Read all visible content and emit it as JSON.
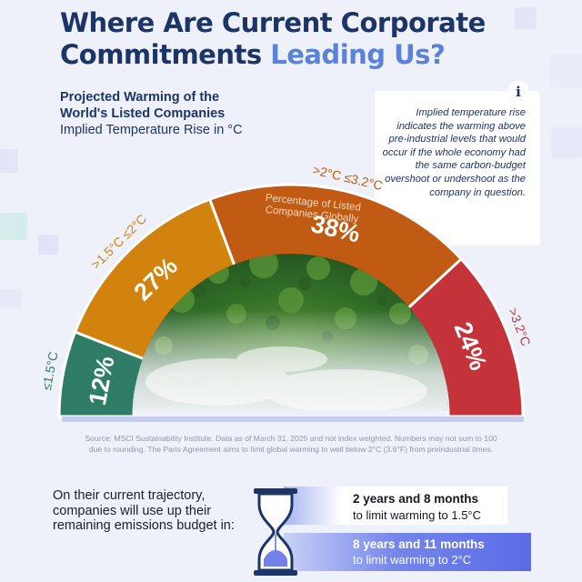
{
  "header": {
    "title_line1": "Where Are Current Corporate",
    "title_line2_plain": "Commitments",
    "title_line2_accent": "Leading Us?"
  },
  "subtitle": {
    "line1": "Projected Warming of the",
    "line2": "World's Listed Companies",
    "line3": "Implied Temperature Rise in °C"
  },
  "info": {
    "icon": "info-icon",
    "icon_glyph": "i",
    "text": "Implied temperature rise indicates the warming above pre-industrial levels that would occur if the whole economy had the same carbon-budget overshoot or undershoot as the company in question."
  },
  "chart_data": {
    "type": "pie",
    "subtype": "semicircle-gauge",
    "annotation_line1": "Percentage of Listed",
    "annotation_line2": "Companies Globally",
    "segments": [
      {
        "label": "≤1.5°C",
        "value": 12,
        "display": "12%",
        "color": "#2f7d66"
      },
      {
        "label": ">1.5°C ≤2°C",
        "value": 27,
        "display": "27%",
        "color": "#d1830e"
      },
      {
        "label": ">2°C ≤3.2°C",
        "value": 38,
        "display": "38%",
        "color": "#c15a12"
      },
      {
        "label": ">3.2°C",
        "value": 24,
        "display": "24%",
        "color": "#c4333a"
      }
    ]
  },
  "source": "Source: MSCI Sustainability Institute. Data as of March 31, 2025 and not index weighted. Numbers may not sum to 100 due to rounding. The Paris Agreement aims to limit global warming to well below 2°C (3.6°F) from preindustrial times.",
  "trajectory": {
    "text": "On their current trajectory, companies will use up their remaining emissions budget in:",
    "icon": "hourglass-icon",
    "items": [
      {
        "time": "2 years and 8 months",
        "goal": "to limit warming to 1.5°C"
      },
      {
        "time": "8 years and 11 months",
        "goal": "to limit warming to 2°C"
      }
    ]
  },
  "colors": {
    "navy": "#1d3566",
    "accent": "#5a83d8",
    "background": "#eef1fa"
  }
}
